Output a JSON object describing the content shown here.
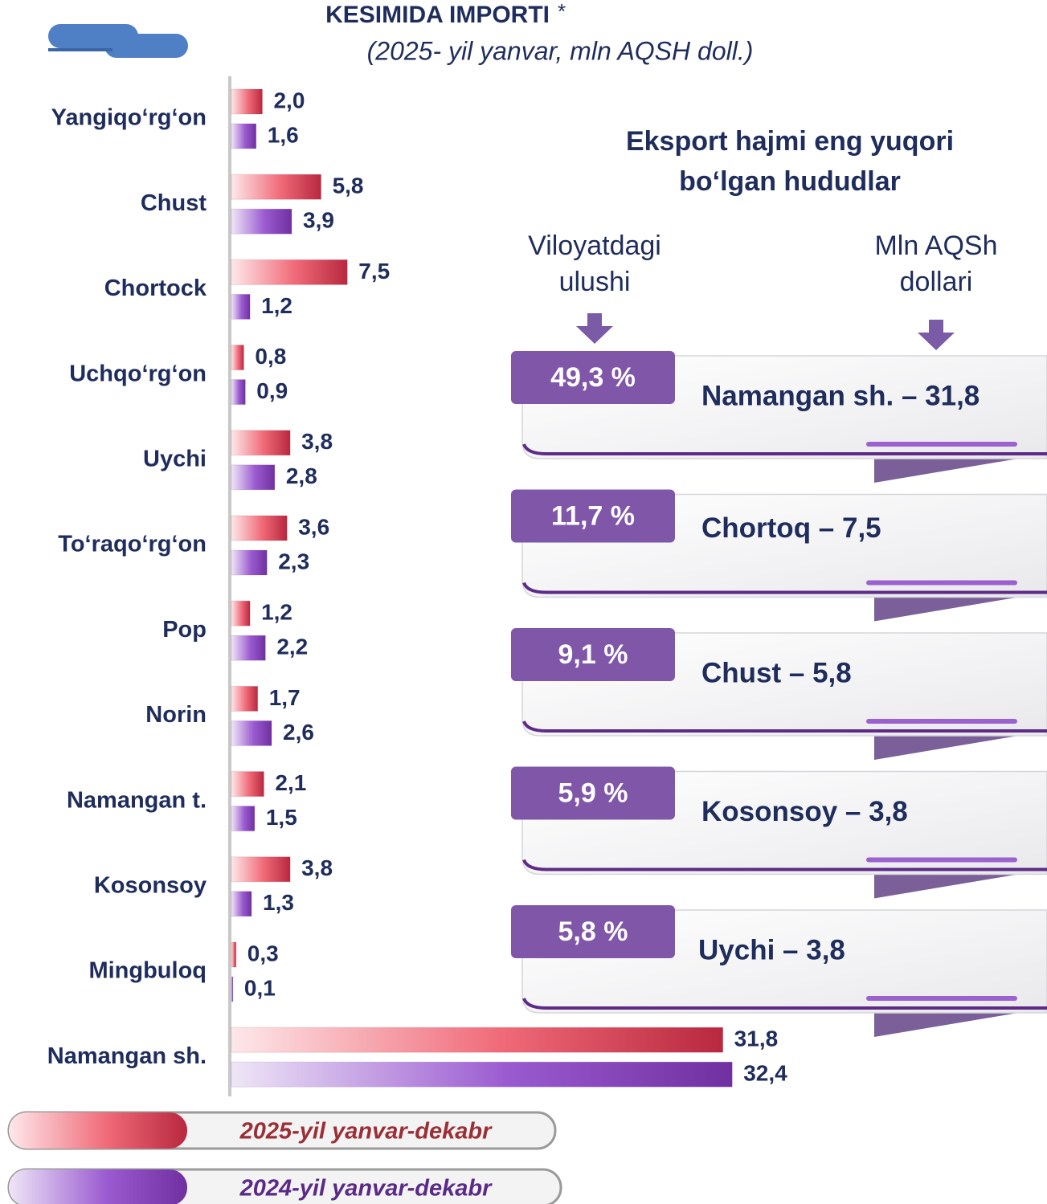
{
  "chart_data": {
    "type": "bar",
    "orientation": "horizontal",
    "title": "KESIMIDA IMPORTI",
    "title_note": "*",
    "subtitle": "(2025- yil yanvar, mln AQSH doll.)",
    "categories": [
      "Yangiqo‘rg‘on",
      "Chust",
      "Chortock",
      "Uchqo‘rg‘on",
      "Uychi",
      "To‘raqo‘rg‘on",
      "Pop",
      "Norin",
      "Namangan t.",
      "Kosonsoy",
      "Mingbuloq",
      "Namangan sh."
    ],
    "xlim": [
      0,
      34
    ],
    "series": [
      {
        "name": "2025-yil yanvar-dekabr",
        "color": "#b8283f",
        "values": [
          2.0,
          5.8,
          7.5,
          0.8,
          3.8,
          3.6,
          1.2,
          1.7,
          2.1,
          3.8,
          0.3,
          31.8
        ],
        "value_labels": [
          "2,0",
          "5,8",
          "7,5",
          "0,8",
          "3,8",
          "3,6",
          "1,2",
          "1,7",
          "2,1",
          "3,8",
          "0,3",
          "31,8"
        ]
      },
      {
        "name": "2024-yil yanvar-dekabr",
        "color": "#7030a0",
        "values": [
          1.6,
          3.9,
          1.2,
          0.9,
          2.8,
          2.3,
          2.2,
          2.6,
          1.5,
          1.3,
          0.1,
          32.4
        ],
        "value_labels": [
          "1,6",
          "3,9",
          "1,2",
          "0,9",
          "2,8",
          "2,3",
          "2,2",
          "2,6",
          "1,5",
          "1,3",
          "0,1",
          "32,4"
        ]
      }
    ]
  },
  "panel": {
    "heading": [
      "Eksport hajmi eng yuqori",
      "bo‘lgan hududlar"
    ],
    "columns": [
      [
        "Viloyatdagi",
        "ulushi"
      ],
      [
        "Mln AQSh",
        "dollari"
      ]
    ],
    "items": [
      {
        "share": "49,3 %",
        "label": "Namangan sh. – 31,8"
      },
      {
        "share": "11,7 %",
        "label": "Chortoq – 7,5"
      },
      {
        "share": "9,1 %",
        "label": "Chust – 5,8"
      },
      {
        "share": "5,9 %",
        "label": "Kosonsoy – 3,8"
      },
      {
        "share": "5,8 %",
        "label": "Uychi – 3,8"
      }
    ]
  }
}
